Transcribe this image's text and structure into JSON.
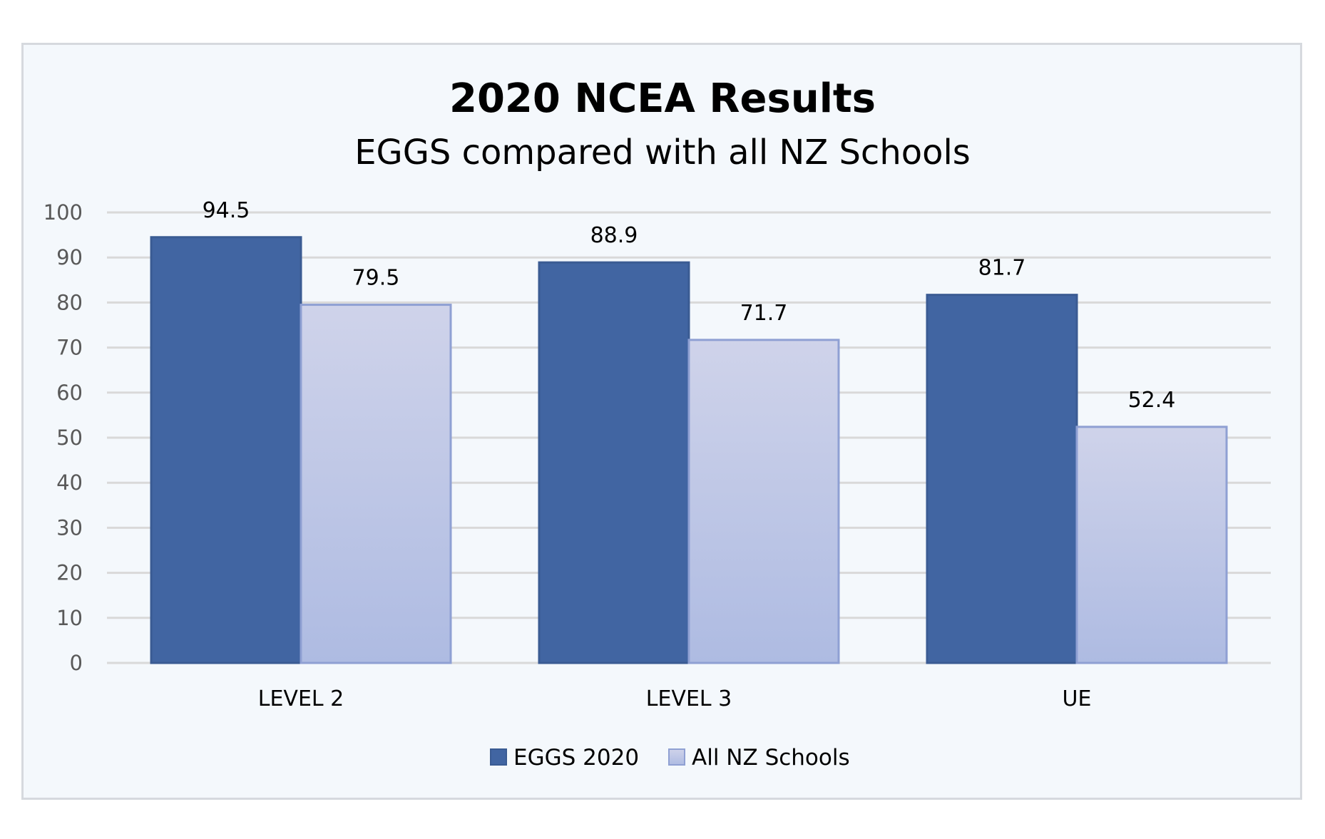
{
  "chart_data": {
    "type": "bar",
    "title": "2020 NCEA Results",
    "subtitle": "EGGS compared with all NZ Schools",
    "categories": [
      "LEVEL 2",
      "LEVEL 3",
      "UE"
    ],
    "series": [
      {
        "name": "EGGS 2020",
        "values": [
          94.5,
          88.9,
          81.7
        ],
        "color": "#4165a2",
        "border": "#3a5b93"
      },
      {
        "name": "All NZ Schools",
        "values": [
          79.5,
          71.7,
          52.4
        ],
        "color_top": "#cfd3ea",
        "color_bottom": "#aebbe2",
        "border": "#8fa0d3"
      }
    ],
    "ylim": [
      0,
      100
    ],
    "yticks": [
      0,
      10,
      20,
      30,
      40,
      50,
      60,
      70,
      80,
      90,
      100
    ],
    "grid": true,
    "legend_position": "bottom-center",
    "background": "#f4f8fc",
    "xlabel": "",
    "ylabel": ""
  }
}
